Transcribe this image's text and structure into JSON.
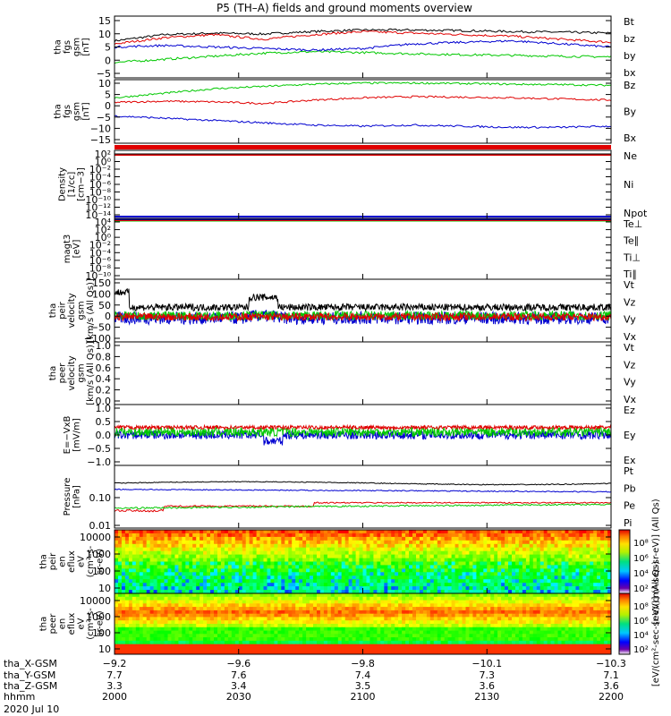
{
  "title": "P5 (TH–A) fields and ground moments overview",
  "chart_data": [
    {
      "type": "line",
      "ylabel": [
        "tha",
        "fgs",
        "gsm",
        "[nT]"
      ],
      "ylim": [
        -5,
        15
      ],
      "yticks": [
        "15",
        "10",
        "5",
        "0",
        "−5"
      ],
      "legend": [
        {
          "name": "Bt",
          "color": "#000000"
        },
        {
          "name": "bz",
          "color": "#e00000"
        },
        {
          "name": "by",
          "color": "#00c800"
        },
        {
          "name": "bx",
          "color": "#0000d0"
        }
      ],
      "series": [
        {
          "name": "Bt",
          "x": [
            0,
            0.1,
            0.2,
            0.3,
            0.4,
            0.5,
            0.6,
            0.7,
            0.8,
            0.9,
            1
          ],
          "values": [
            7,
            9,
            9.5,
            9.2,
            10,
            10.5,
            10.5,
            10.3,
            10,
            9.8,
            9.5
          ]
        },
        {
          "name": "bz",
          "x": [
            0,
            0.1,
            0.2,
            0.3,
            0.4,
            0.5,
            0.6,
            0.7,
            0.8,
            0.9,
            1
          ],
          "values": [
            6,
            8,
            9,
            7.5,
            9,
            10,
            9.5,
            9,
            8.5,
            7.5,
            6.5
          ]
        },
        {
          "name": "by",
          "x": [
            0,
            0.1,
            0.2,
            0.3,
            0.4,
            0.5,
            0.6,
            0.7,
            0.8,
            0.9,
            1
          ],
          "values": [
            0,
            1,
            2,
            3,
            3.5,
            3.2,
            2.8,
            2.5,
            2.3,
            2,
            1.8
          ]
        },
        {
          "name": "bx",
          "x": [
            0,
            0.1,
            0.2,
            0.3,
            0.4,
            0.5,
            0.6,
            0.7,
            0.8,
            0.9,
            1
          ],
          "values": [
            5,
            5.5,
            5,
            4.5,
            4,
            4.5,
            6,
            6.5,
            7,
            6,
            5
          ]
        }
      ]
    },
    {
      "type": "line",
      "ylabel": [
        "tha",
        "fgs",
        "gsm",
        "[nT]"
      ],
      "ylim": [
        -18,
        10
      ],
      "yticks": [
        "10",
        "5",
        "0",
        "−5",
        "−10",
        "−15"
      ],
      "legend": [
        {
          "name": "Bz",
          "color": "#e00000"
        },
        {
          "name": "By",
          "color": "#00c800"
        },
        {
          "name": "Bx",
          "color": "#0000d0"
        }
      ],
      "series": [
        {
          "name": "Bz",
          "x": [
            0,
            0.1,
            0.2,
            0.3,
            0.4,
            0.5,
            0.6,
            0.7,
            0.8,
            0.9,
            1
          ],
          "values": [
            0,
            0.5,
            0.2,
            -0.5,
            1,
            2,
            2.5,
            2.3,
            2,
            1.5,
            1
          ]
        },
        {
          "name": "By",
          "x": [
            0,
            0.1,
            0.2,
            0.3,
            0.4,
            0.5,
            0.6,
            0.7,
            0.8,
            0.9,
            1
          ],
          "values": [
            2,
            4,
            6,
            7,
            8,
            8.5,
            8.5,
            8.3,
            8,
            7.8,
            7.5
          ]
        },
        {
          "name": "Bx",
          "x": [
            0,
            0.1,
            0.2,
            0.3,
            0.4,
            0.5,
            0.6,
            0.7,
            0.8,
            0.9,
            1
          ],
          "values": [
            -6,
            -7,
            -8,
            -9,
            -10,
            -10.5,
            -10,
            -10.5,
            -11,
            -11,
            -10.5
          ]
        }
      ]
    },
    {
      "type": "line",
      "ylabel": [
        "Density",
        "[1/cc]",
        "[cm−3]"
      ],
      "yticks": [
        "10²",
        "10⁰",
        "10⁻²",
        "10⁻⁴",
        "10⁻⁶",
        "10⁻⁸",
        "10⁻¹⁰",
        "10⁻¹²",
        "10⁻¹⁴"
      ],
      "legend": [
        {
          "name": "Ne",
          "color": "#e00000"
        },
        {
          "name": "Ni",
          "color": "#000000"
        },
        {
          "name": "Npot",
          "color": "#0000d0"
        }
      ]
    },
    {
      "type": "line",
      "ylabel": [
        "magt3",
        "[eV]"
      ],
      "yticks": [
        "10⁴",
        "10²",
        "10⁰",
        "10⁻²",
        "10⁻⁴",
        "10⁻⁶",
        "10⁻⁸",
        "10⁻¹⁰"
      ],
      "legend": [
        {
          "name": "Te⊥",
          "color": "#e00000"
        },
        {
          "name": "Te∥",
          "color": "#000000"
        },
        {
          "name": "Ti⊥",
          "color": "#0000d0"
        },
        {
          "name": "Ti∥",
          "color": "#00c800"
        }
      ]
    },
    {
      "type": "line",
      "ylabel": [
        "tha",
        "peir",
        "velocity",
        "gsm",
        "[km/s (All Qs)]"
      ],
      "ylim": [
        -100,
        150
      ],
      "yticks": [
        "150",
        "100",
        "50",
        "0",
        "−50",
        "−100"
      ],
      "legend": [
        {
          "name": "Vt",
          "color": "#000000"
        },
        {
          "name": "Vz",
          "color": "#e00000"
        },
        {
          "name": "Vy",
          "color": "#00c800"
        },
        {
          "name": "Vx",
          "color": "#0000d0"
        }
      ]
    },
    {
      "type": "line",
      "ylabel": [
        "tha",
        "peer",
        "velocity",
        "gsm",
        "[km/s (All Qs)]"
      ],
      "ylim": [
        0,
        1
      ],
      "yticks": [
        "1.0",
        "0.8",
        "0.6",
        "0.4",
        "0.2",
        "0.0"
      ],
      "legend": [
        {
          "name": "Vt",
          "color": "#000000"
        },
        {
          "name": "Vz",
          "color": "#e00000"
        },
        {
          "name": "Vy",
          "color": "#00c800"
        },
        {
          "name": "Vx",
          "color": "#0000d0"
        }
      ]
    },
    {
      "type": "line",
      "ylabel": [
        "E=−VxB",
        "[mV/m]"
      ],
      "ylim": [
        -1,
        1
      ],
      "yticks": [
        "1.0",
        "0.5",
        "0.0",
        "−0.5",
        "−1.0"
      ],
      "legend": [
        {
          "name": "Ez",
          "color": "#e00000"
        },
        {
          "name": "Ey",
          "color": "#00c800"
        },
        {
          "name": "Ex",
          "color": "#0000d0"
        }
      ]
    },
    {
      "type": "line",
      "ylabel": [
        "Pressure",
        "[nPa]"
      ],
      "ylim": [
        0.01,
        1
      ],
      "yticks": [
        "0.10",
        "0.01"
      ],
      "legend": [
        {
          "name": "Pt",
          "color": "#000000"
        },
        {
          "name": "Pb",
          "color": "#e00000"
        },
        {
          "name": "Pe",
          "color": "#00c800"
        },
        {
          "name": "Pi",
          "color": "#0000d0"
        }
      ]
    },
    {
      "type": "heatmap",
      "ylabel": [
        "tha",
        "peir",
        "en",
        "eflux",
        "eV",
        "(cm²-s-",
        "sr-eV)"
      ],
      "yticks": [
        "10000",
        "1000",
        "100",
        "10"
      ],
      "colorbar_label": "[eV/(cm²-sec-sr-eV)] (All Qs)",
      "colorbar_ticks": [
        "10⁸",
        "10⁶",
        "10⁴",
        "10²"
      ]
    },
    {
      "type": "heatmap",
      "ylabel": [
        "tha",
        "peer",
        "en",
        "eflux",
        "eV",
        "(cm²-s-",
        "sr-eV)"
      ],
      "yticks": [
        "10000",
        "1000",
        "100",
        "10"
      ],
      "colorbar_label": "[eV/(cm²-sec-sr-eV)] (All Qs)",
      "colorbar_ticks": [
        "10⁸",
        "10⁶",
        "10⁴",
        "10²"
      ]
    }
  ],
  "x_axis": {
    "row_labels": [
      "tha_X-GSM",
      "tha_Y-GSM",
      "tha_Z-GSM",
      "hhmm",
      "2020 Jul 10"
    ],
    "columns": [
      [
        "−9.2",
        "7.7",
        "3.3",
        "2000"
      ],
      [
        "−9.6",
        "7.6",
        "3.4",
        "2030"
      ],
      [
        "−9.8",
        "7.4",
        "3.5",
        "2100"
      ],
      [
        "−10.1",
        "7.3",
        "3.6",
        "2130"
      ],
      [
        "−10.3",
        "7.1",
        "3.6",
        "2200"
      ]
    ]
  }
}
